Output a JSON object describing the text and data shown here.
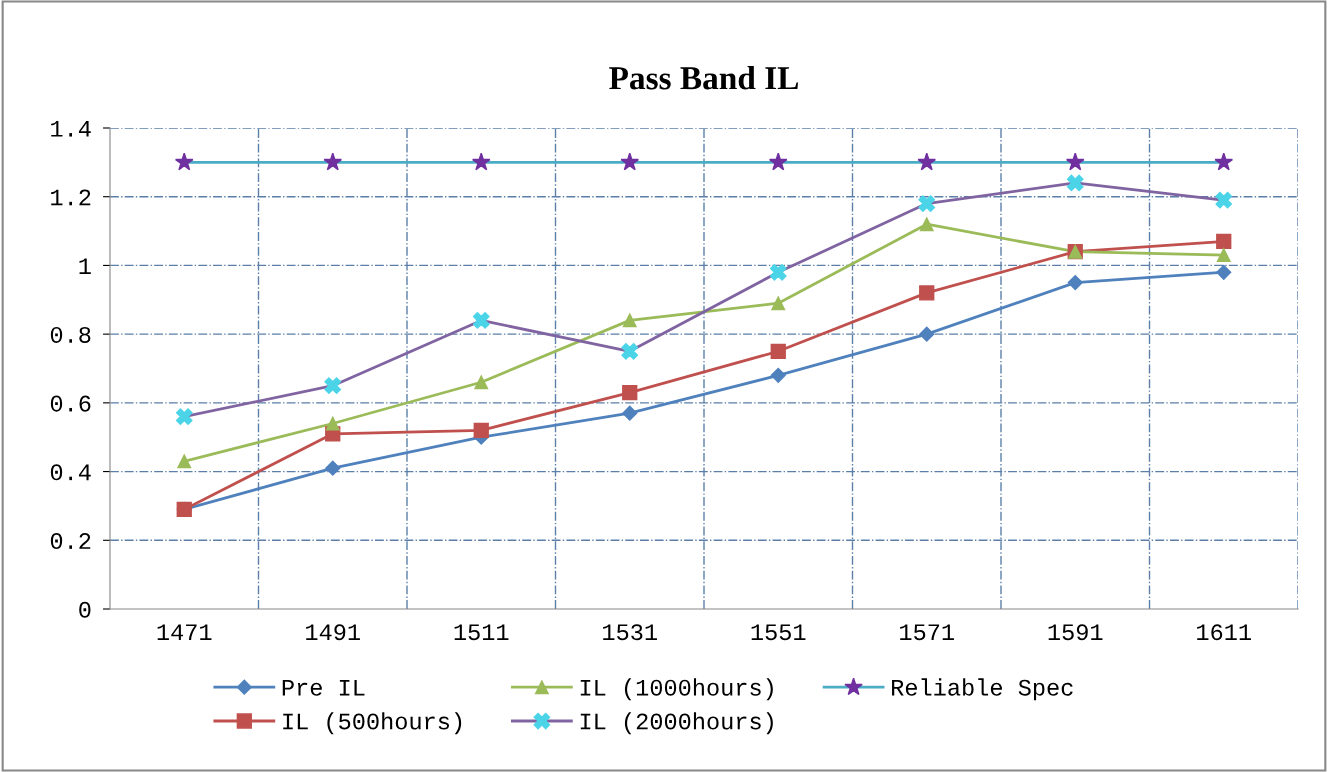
{
  "chart_data": {
    "type": "line",
    "title": "Pass Band IL",
    "categories": [
      "1471",
      "1491",
      "1511",
      "1531",
      "1551",
      "1571",
      "1591",
      "1611"
    ],
    "ylim": [
      0,
      1.4
    ],
    "yticks": [
      0,
      0.2,
      0.4,
      0.6,
      0.8,
      1,
      1.2,
      1.4
    ],
    "grid": true,
    "legend": "bottom",
    "line_style": "solid",
    "series": [
      {
        "name": "Pre IL",
        "color": "#4f81bd",
        "marker": "diamond",
        "values": [
          0.29,
          0.41,
          0.5,
          0.57,
          0.68,
          0.8,
          0.95,
          0.98
        ]
      },
      {
        "name": "IL (500hours)",
        "color": "#c0504d",
        "marker": "square",
        "values": [
          0.29,
          0.51,
          0.52,
          0.63,
          0.75,
          0.92,
          1.04,
          1.07
        ]
      },
      {
        "name": "IL (1000hours)",
        "color": "#9bbb59",
        "marker": "triangle",
        "values": [
          0.43,
          0.54,
          0.66,
          0.84,
          0.89,
          1.12,
          1.04,
          1.03
        ]
      },
      {
        "name": "IL (2000hours)",
        "color": "#8064a2",
        "marker": "cross",
        "colors": [
          "#4bd4e8",
          "#4bd4e8",
          "#4bd4e8",
          "#4bd4e8",
          "#4bd4e8",
          "#4bd4e8",
          "#4bd4e8",
          "#4bd4e8"
        ],
        "values": [
          0.56,
          0.65,
          0.84,
          0.75,
          0.98,
          1.18,
          1.24,
          1.19
        ]
      },
      {
        "name": "Reliable Spec",
        "color": "#4bacc6",
        "marker": "star",
        "colors": [
          "#7030a0",
          "#7030a0",
          "#7030a0",
          "#7030a0",
          "#7030a0",
          "#7030a0",
          "#7030a0",
          "#7030a0"
        ],
        "values": [
          1.3,
          1.3,
          1.3,
          1.3,
          1.3,
          1.3,
          1.3,
          1.3
        ]
      }
    ]
  }
}
